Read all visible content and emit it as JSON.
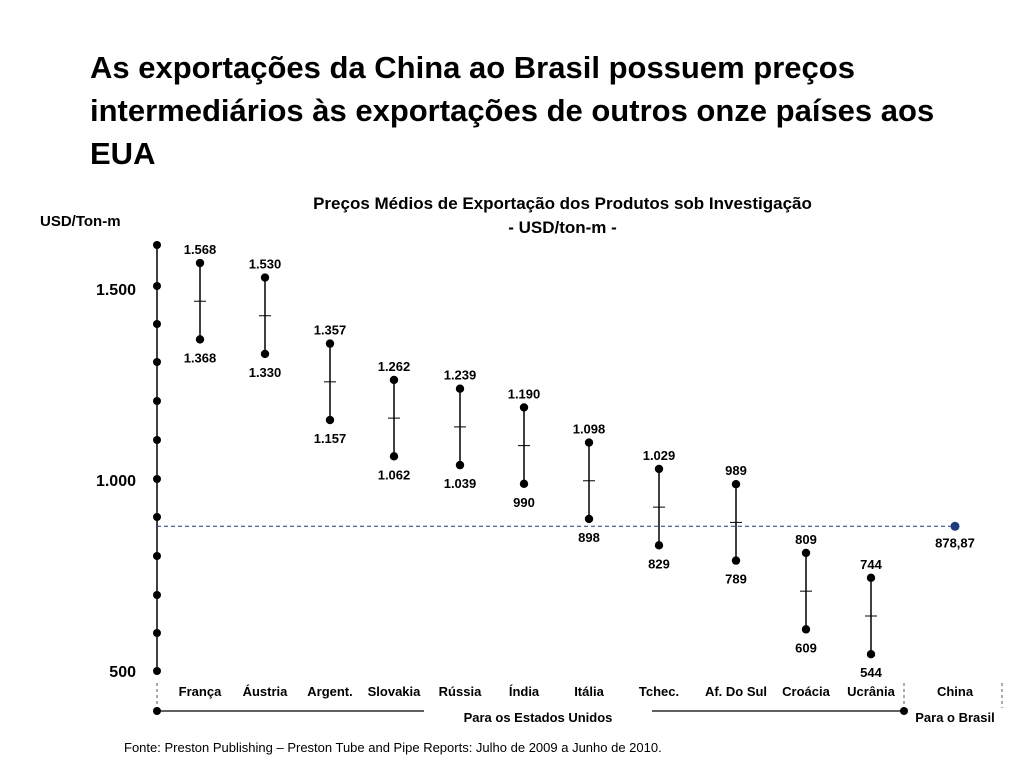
{
  "slide": {
    "title": "As exportações da China ao Brasil possuem preços intermediários às exportações de outros onze países aos EUA",
    "source": "Fonte: Preston Publishing – Preston Tube and Pipe Reports: Julho de 2009 a Junho de 2010."
  },
  "chart_data": {
    "type": "range",
    "title": "Preços Médios de Exportação dos Produtos sob Investigação",
    "subtitle": "- USD/ton-m -",
    "ylabel": "USD/Ton-m",
    "ylim": [
      500,
      1600
    ],
    "yticks": [
      {
        "value": 500,
        "label": "500"
      },
      {
        "value": 1000,
        "label": "1.000"
      },
      {
        "value": 1500,
        "label": "1.500"
      }
    ],
    "categories": [
      "França",
      "Áustria",
      "Argent.",
      "Slovakia",
      "Rússia",
      "Índia",
      "Itália",
      "Tchec.",
      "Af. Do Sul",
      "Croácia",
      "Ucrânia",
      "China"
    ],
    "ranges": [
      {
        "category": "França",
        "high": 1568,
        "low": 1368,
        "high_label": "1.568",
        "low_label": "1.368"
      },
      {
        "category": "Áustria",
        "high": 1530,
        "low": 1330,
        "high_label": "1.530",
        "low_label": "1.330"
      },
      {
        "category": "Argent.",
        "high": 1357,
        "low": 1157,
        "high_label": "1.357",
        "low_label": "1.157"
      },
      {
        "category": "Slovakia",
        "high": 1262,
        "low": 1062,
        "high_label": "1.262",
        "low_label": "1.062"
      },
      {
        "category": "Rússia",
        "high": 1239,
        "low": 1039,
        "high_label": "1.239",
        "low_label": "1.039"
      },
      {
        "category": "Índia",
        "high": 1190,
        "low": 990,
        "high_label": "1.190",
        "low_label": "990"
      },
      {
        "category": "Itália",
        "high": 1098,
        "low": 898,
        "high_label": "1.098",
        "low_label": "898"
      },
      {
        "category": "Tchec.",
        "high": 1029,
        "low": 829,
        "high_label": "1.029",
        "low_label": "829"
      },
      {
        "category": "Af. Do Sul",
        "high": 989,
        "low": 789,
        "high_label": "989",
        "low_label": "789"
      },
      {
        "category": "Croácia",
        "high": 809,
        "low": 609,
        "high_label": "809",
        "low_label": "609"
      },
      {
        "category": "Ucrânia",
        "high": 744,
        "low": 544,
        "high_label": "744",
        "low_label": "544"
      }
    ],
    "reference": {
      "category": "China",
      "value": 878.87,
      "label": "878,87",
      "color": "#1f3a7a",
      "line_style": "dashed"
    },
    "groups": [
      {
        "label": "Para os Estados Unidos",
        "from": "França",
        "to": "Ucrânia"
      },
      {
        "label": "Para o Brasil",
        "from": "China",
        "to": "China"
      }
    ],
    "grid": false
  }
}
